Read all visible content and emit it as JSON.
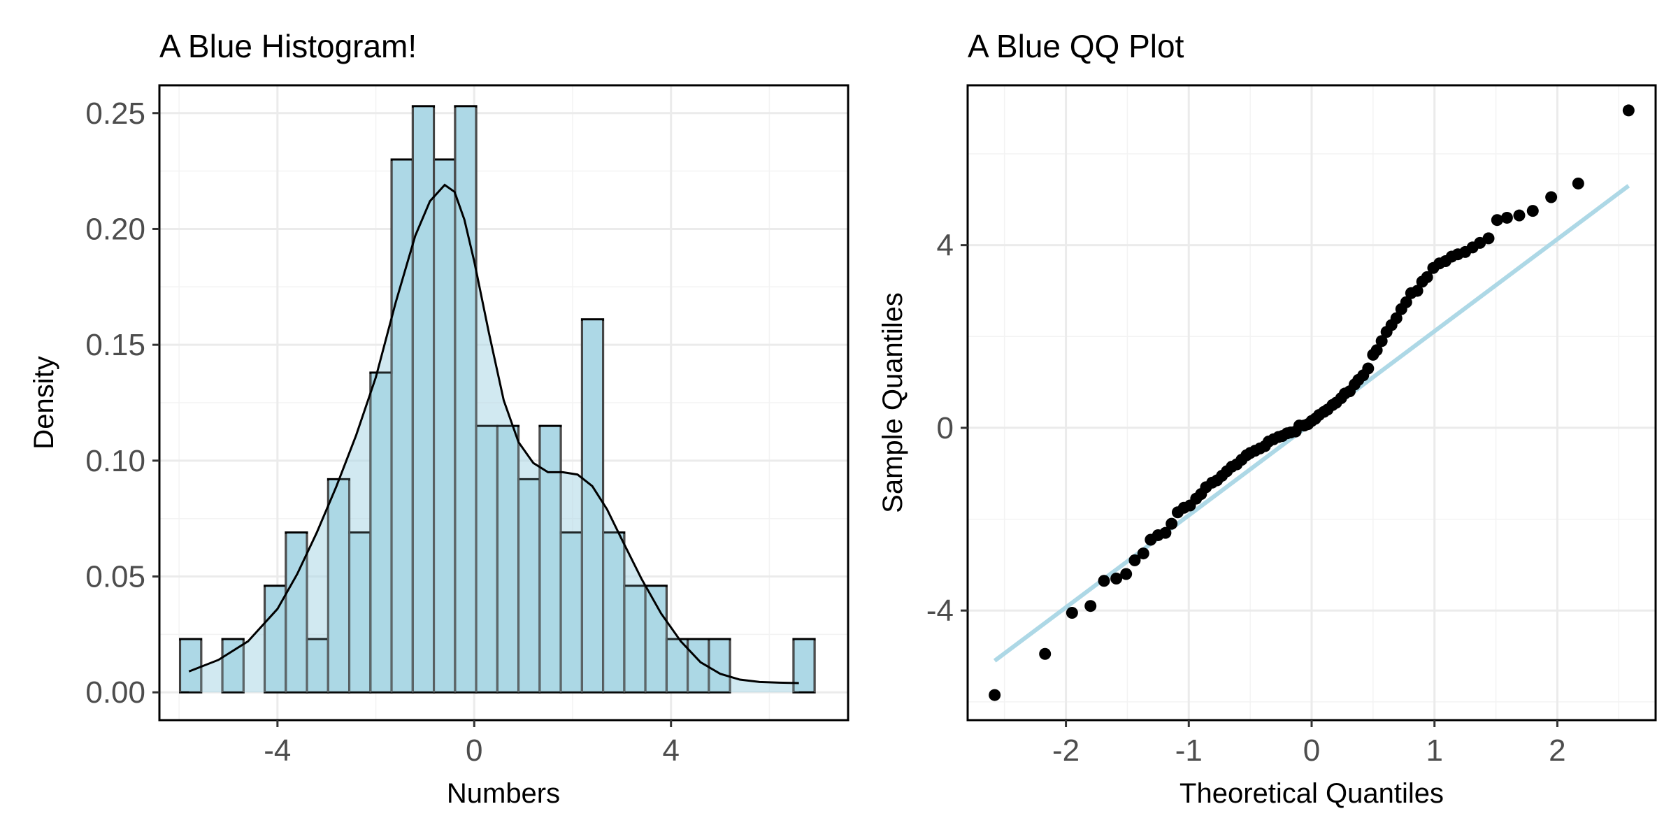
{
  "chart_data": [
    {
      "type": "bar",
      "subtype": "histogram-with-density",
      "title": "A Blue Histogram!",
      "xlabel": "Numbers",
      "ylabel": "Density",
      "xlim": [
        -6.4,
        7.6
      ],
      "ylim": [
        -0.012,
        0.262
      ],
      "xticks": [
        -4,
        0,
        4
      ],
      "xtick_labels": [
        "-4",
        "0",
        "4"
      ],
      "yticks": [
        0.0,
        0.05,
        0.1,
        0.15,
        0.2,
        0.25
      ],
      "ytick_labels": [
        "0.00",
        "0.05",
        "0.10",
        "0.15",
        "0.20",
        "0.25"
      ],
      "grid": true,
      "bin_width": 0.43,
      "bins": [
        {
          "start": -5.98,
          "value": 0.023
        },
        {
          "start": -5.55,
          "value": 0.0
        },
        {
          "start": -5.12,
          "value": 0.023
        },
        {
          "start": -4.69,
          "value": 0.0
        },
        {
          "start": -4.26,
          "value": 0.046
        },
        {
          "start": -3.83,
          "value": 0.069
        },
        {
          "start": -3.4,
          "value": 0.023
        },
        {
          "start": -2.97,
          "value": 0.092
        },
        {
          "start": -2.54,
          "value": 0.069
        },
        {
          "start": -2.11,
          "value": 0.138
        },
        {
          "start": -1.68,
          "value": 0.23
        },
        {
          "start": -1.25,
          "value": 0.253
        },
        {
          "start": -0.82,
          "value": 0.23
        },
        {
          "start": -0.39,
          "value": 0.253
        },
        {
          "start": 0.04,
          "value": 0.115
        },
        {
          "start": 0.47,
          "value": 0.115
        },
        {
          "start": 0.9,
          "value": 0.092
        },
        {
          "start": 1.33,
          "value": 0.115
        },
        {
          "start": 1.76,
          "value": 0.069
        },
        {
          "start": 2.19,
          "value": 0.161
        },
        {
          "start": 2.62,
          "value": 0.069
        },
        {
          "start": 3.05,
          "value": 0.046
        },
        {
          "start": 3.48,
          "value": 0.046
        },
        {
          "start": 3.91,
          "value": 0.023
        },
        {
          "start": 4.34,
          "value": 0.023
        },
        {
          "start": 4.77,
          "value": 0.023
        },
        {
          "start": 5.2,
          "value": 0.0
        },
        {
          "start": 5.63,
          "value": 0.0
        },
        {
          "start": 6.06,
          "value": 0.0
        },
        {
          "start": 6.49,
          "value": 0.023
        }
      ],
      "density_curve": {
        "x": [
          -5.8,
          -5.2,
          -4.6,
          -4.0,
          -3.6,
          -3.2,
          -2.8,
          -2.4,
          -2.0,
          -1.6,
          -1.2,
          -0.9,
          -0.6,
          -0.4,
          -0.2,
          0.0,
          0.3,
          0.6,
          0.9,
          1.2,
          1.5,
          1.8,
          2.1,
          2.4,
          2.7,
          3.0,
          3.4,
          3.8,
          4.2,
          4.6,
          5.0,
          5.4,
          5.8,
          6.2,
          6.6
        ],
        "y": [
          0.009,
          0.014,
          0.022,
          0.036,
          0.051,
          0.069,
          0.089,
          0.111,
          0.136,
          0.168,
          0.197,
          0.212,
          0.219,
          0.216,
          0.204,
          0.186,
          0.155,
          0.126,
          0.108,
          0.099,
          0.095,
          0.095,
          0.094,
          0.089,
          0.079,
          0.066,
          0.049,
          0.034,
          0.022,
          0.013,
          0.008,
          0.0055,
          0.0045,
          0.0042,
          0.004
        ]
      },
      "colors": {
        "fill": "#add8e6",
        "outline": "#000000"
      }
    },
    {
      "type": "scatter",
      "subtype": "qq-plot",
      "title": "A Blue QQ Plot",
      "xlabel": "Theoretical Quantiles",
      "ylabel": "Sample Quantiles",
      "xlim": [
        -2.8,
        2.8
      ],
      "ylim": [
        -6.4,
        7.5
      ],
      "xticks": [
        -2,
        -1,
        0,
        1,
        2
      ],
      "xtick_labels": [
        "-2",
        "-1",
        "0",
        "1",
        "2"
      ],
      "yticks": [
        -4,
        0,
        4
      ],
      "ytick_labels": [
        "-4",
        "0",
        "4"
      ],
      "grid": true,
      "reference_line": {
        "x": [
          -2.58,
          2.58
        ],
        "y": [
          -5.1,
          5.3
        ],
        "color": "#add8e6"
      },
      "points": {
        "x": [
          -2.58,
          -2.17,
          -1.95,
          -1.8,
          -1.69,
          -1.59,
          -1.51,
          -1.44,
          -1.37,
          -1.31,
          -1.25,
          -1.19,
          -1.14,
          -1.09,
          -1.04,
          -0.99,
          -0.94,
          -0.9,
          -0.86,
          -0.81,
          -0.77,
          -0.73,
          -0.69,
          -0.65,
          -0.61,
          -0.57,
          -0.53,
          -0.5,
          -0.46,
          -0.42,
          -0.38,
          -0.35,
          -0.31,
          -0.27,
          -0.24,
          -0.2,
          -0.17,
          -0.13,
          -0.1,
          -0.06,
          -0.03,
          0.0,
          0.03,
          0.06,
          0.1,
          0.13,
          0.17,
          0.2,
          0.24,
          0.27,
          0.31,
          0.35,
          0.38,
          0.42,
          0.46,
          0.5,
          0.53,
          0.57,
          0.61,
          0.65,
          0.69,
          0.73,
          0.77,
          0.81,
          0.86,
          0.9,
          0.94,
          0.99,
          1.04,
          1.09,
          1.14,
          1.19,
          1.25,
          1.31,
          1.37,
          1.44,
          1.51,
          1.59,
          1.69,
          1.8,
          1.95,
          2.17,
          2.58
        ],
        "y": [
          -5.85,
          -4.95,
          -4.05,
          -3.9,
          -3.35,
          -3.3,
          -3.2,
          -2.9,
          -2.75,
          -2.45,
          -2.35,
          -2.3,
          -2.1,
          -1.85,
          -1.75,
          -1.7,
          -1.55,
          -1.45,
          -1.3,
          -1.2,
          -1.15,
          -1.05,
          -0.95,
          -0.85,
          -0.8,
          -0.7,
          -0.6,
          -0.55,
          -0.5,
          -0.45,
          -0.4,
          -0.3,
          -0.25,
          -0.2,
          -0.18,
          -0.12,
          -0.1,
          -0.08,
          0.05,
          0.05,
          0.08,
          0.15,
          0.2,
          0.28,
          0.35,
          0.4,
          0.5,
          0.55,
          0.65,
          0.75,
          0.8,
          0.95,
          1.05,
          1.15,
          1.3,
          1.6,
          1.7,
          1.9,
          2.1,
          2.25,
          2.4,
          2.6,
          2.75,
          2.95,
          3.0,
          3.2,
          3.3,
          3.5,
          3.6,
          3.65,
          3.75,
          3.8,
          3.85,
          3.95,
          4.05,
          4.15,
          4.55,
          4.6,
          4.65,
          4.75,
          5.05,
          5.35,
          6.95
        ]
      },
      "colors": {
        "points": "#000000",
        "line": "#add8e6"
      }
    }
  ]
}
